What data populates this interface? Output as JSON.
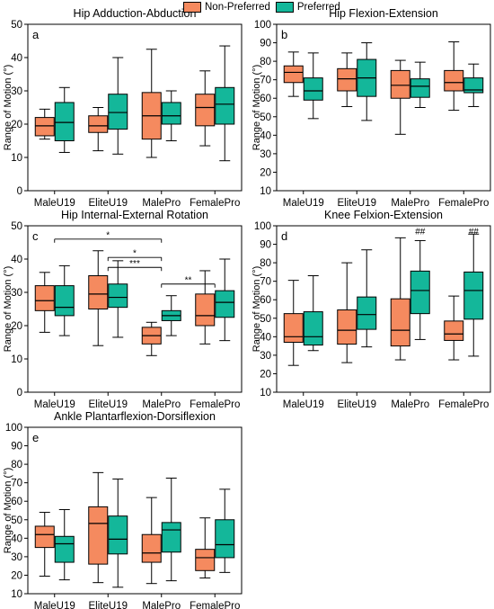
{
  "colors": {
    "non_preferred": "#f58a5f",
    "preferred": "#14b79a"
  },
  "legend": {
    "non_preferred": "Non-Preferred",
    "preferred": "Preferred"
  },
  "chart_data": [
    {
      "type": "box",
      "panel_label": "a",
      "title": "Hip Adduction-Abduction",
      "ylabel": "Range of Motion (°)",
      "ylim": [
        0,
        50
      ],
      "yticks": [
        0,
        10,
        20,
        30,
        40,
        50
      ],
      "categories": [
        "MaleU19",
        "EliteU19",
        "MalePro",
        "FemalePro"
      ],
      "series": [
        {
          "name": "Non-Preferred",
          "boxes": [
            {
              "min": 15.5,
              "q1": 16.5,
              "median": 19.5,
              "q3": 22.0,
              "max": 24.5
            },
            {
              "min": 12.0,
              "q1": 17.5,
              "median": 19.5,
              "q3": 22.5,
              "max": 25.0
            },
            {
              "min": 10.0,
              "q1": 15.5,
              "median": 22.5,
              "q3": 29.5,
              "max": 42.5
            },
            {
              "min": 13.5,
              "q1": 19.5,
              "median": 25.0,
              "q3": 29.0,
              "max": 36.0
            }
          ]
        },
        {
          "name": "Preferred",
          "boxes": [
            {
              "min": 11.5,
              "q1": 15.0,
              "median": 20.5,
              "q3": 26.5,
              "max": 31.0
            },
            {
              "min": 11.0,
              "q1": 18.5,
              "median": 23.5,
              "q3": 29.0,
              "max": 40.0
            },
            {
              "min": 15.0,
              "q1": 20.0,
              "median": 22.5,
              "q3": 26.5,
              "max": 30.0
            },
            {
              "min": 9.0,
              "q1": 20.0,
              "median": 26.0,
              "q3": 31.0,
              "max": 43.5
            }
          ]
        }
      ],
      "annotations": []
    },
    {
      "type": "box",
      "panel_label": "b",
      "title": "Hip Flexion-Extension",
      "ylabel": "Range of Motion (°)",
      "ylim": [
        10,
        100
      ],
      "yticks": [
        10,
        20,
        30,
        40,
        50,
        60,
        70,
        80,
        90,
        100
      ],
      "categories": [
        "MaleU19",
        "EliteU19",
        "MalePro",
        "FemalePro"
      ],
      "series": [
        {
          "name": "Non-Preferred",
          "boxes": [
            {
              "min": 61.0,
              "q1": 68.5,
              "median": 74.0,
              "q3": 77.5,
              "max": 85.0
            },
            {
              "min": 55.5,
              "q1": 64.0,
              "median": 70.5,
              "q3": 76.0,
              "max": 84.5
            },
            {
              "min": 40.5,
              "q1": 60.0,
              "median": 67.0,
              "q3": 75.0,
              "max": 80.5
            },
            {
              "min": 53.5,
              "q1": 64.0,
              "median": 68.5,
              "q3": 75.0,
              "max": 90.5
            }
          ]
        },
        {
          "name": "Preferred",
          "boxes": [
            {
              "min": 49.0,
              "q1": 59.0,
              "median": 64.0,
              "q3": 71.0,
              "max": 84.5
            },
            {
              "min": 48.0,
              "q1": 61.0,
              "median": 71.0,
              "q3": 81.0,
              "max": 90.0
            },
            {
              "min": 55.0,
              "q1": 60.5,
              "median": 66.5,
              "q3": 70.5,
              "max": 79.5
            },
            {
              "min": 55.5,
              "q1": 63.0,
              "median": 64.5,
              "q3": 71.0,
              "max": 78.5
            }
          ]
        }
      ],
      "annotations": []
    },
    {
      "type": "box",
      "panel_label": "c",
      "title": "Hip Internal-External Rotation",
      "ylabel": "Range of Motion (°)",
      "ylim": [
        0,
        50
      ],
      "yticks": [
        0,
        10,
        20,
        30,
        40,
        50
      ],
      "categories": [
        "MaleU19",
        "EliteU19",
        "MalePro",
        "FemalePro"
      ],
      "series": [
        {
          "name": "Non-Preferred",
          "boxes": [
            {
              "min": 18.0,
              "q1": 24.5,
              "median": 27.5,
              "q3": 32.0,
              "max": 36.0
            },
            {
              "min": 14.0,
              "q1": 25.0,
              "median": 29.5,
              "q3": 35.0,
              "max": 42.5
            },
            {
              "min": 11.0,
              "q1": 14.5,
              "median": 17.0,
              "q3": 19.5,
              "max": 21.0
            },
            {
              "min": 14.5,
              "q1": 20.0,
              "median": 23.0,
              "q3": 29.5,
              "max": 36.5
            }
          ]
        },
        {
          "name": "Preferred",
          "boxes": [
            {
              "min": 17.0,
              "q1": 23.0,
              "median": 25.5,
              "q3": 32.0,
              "max": 38.0
            },
            {
              "min": 16.5,
              "q1": 25.5,
              "median": 28.5,
              "q3": 32.5,
              "max": 39.5
            },
            {
              "min": 17.0,
              "q1": 21.5,
              "median": 23.0,
              "q3": 24.5,
              "max": 29.0
            },
            {
              "min": 15.5,
              "q1": 22.5,
              "median": 27.0,
              "q3": 30.5,
              "max": 40.0
            }
          ]
        }
      ],
      "annotations": [
        {
          "from": "MaleU19",
          "to": "MalePro",
          "y": 46.0,
          "text": "*"
        },
        {
          "from": "EliteU19",
          "to": "MalePro",
          "y": 40.5,
          "text": "*"
        },
        {
          "from": "EliteU19",
          "to": "MalePro",
          "y": 37.5,
          "text": "***"
        },
        {
          "from": "MalePro",
          "to": "FemalePro",
          "y": 32.5,
          "text": "**"
        }
      ]
    },
    {
      "type": "box",
      "panel_label": "d",
      "title": "Knee Felxion-Extension",
      "ylabel": "Range of Motion (°)",
      "ylim": [
        10,
        100
      ],
      "yticks": [
        10,
        20,
        30,
        40,
        50,
        60,
        70,
        80,
        90,
        100
      ],
      "categories": [
        "MaleU19",
        "EliteU19",
        "MalePro",
        "FemalePro"
      ],
      "series": [
        {
          "name": "Non-Preferred",
          "boxes": [
            {
              "min": 24.5,
              "q1": 37.0,
              "median": 40.0,
              "q3": 52.5,
              "max": 70.5
            },
            {
              "min": 26.0,
              "q1": 36.0,
              "median": 43.5,
              "q3": 54.5,
              "max": 80.0
            },
            {
              "min": 27.5,
              "q1": 35.0,
              "median": 43.5,
              "q3": 60.5,
              "max": 93.5
            },
            {
              "min": 27.5,
              "q1": 38.0,
              "median": 41.5,
              "q3": 48.5,
              "max": 62.0
            }
          ]
        },
        {
          "name": "Preferred",
          "boxes": [
            {
              "min": 32.5,
              "q1": 35.5,
              "median": 40.0,
              "q3": 53.5,
              "max": 73.0
            },
            {
              "min": 34.5,
              "q1": 44.0,
              "median": 52.0,
              "q3": 61.5,
              "max": 87.0
            },
            {
              "min": 38.5,
              "q1": 52.5,
              "median": 65.0,
              "q3": 75.5,
              "max": 92.0
            },
            {
              "min": 29.5,
              "q1": 49.5,
              "median": 65.0,
              "q3": 75.0,
              "max": 95.5
            }
          ]
        }
      ],
      "annotations": [
        {
          "category": "MalePro",
          "series": "Preferred",
          "y": 95.5,
          "text": "##"
        },
        {
          "category": "FemalePro",
          "series": "Preferred",
          "y": 95.5,
          "text": "##"
        }
      ]
    },
    {
      "type": "box",
      "panel_label": "e",
      "title": "Ankle Plantarflexion-Dorsiflexion",
      "ylabel": "Range of Motion (°)",
      "ylim": [
        10,
        100
      ],
      "yticks": [
        10,
        20,
        30,
        40,
        50,
        60,
        70,
        80,
        90,
        100
      ],
      "categories": [
        "MaleU19",
        "EliteU19",
        "MalePro",
        "FemalePro"
      ],
      "series": [
        {
          "name": "Non-Preferred",
          "boxes": [
            {
              "min": 19.5,
              "q1": 35.0,
              "median": 42.0,
              "q3": 46.5,
              "max": 54.0
            },
            {
              "min": 16.0,
              "q1": 26.0,
              "median": 48.0,
              "q3": 57.0,
              "max": 75.5
            },
            {
              "min": 15.5,
              "q1": 27.0,
              "median": 32.0,
              "q3": 42.0,
              "max": 62.0
            },
            {
              "min": 18.5,
              "q1": 22.5,
              "median": 29.5,
              "q3": 34.0,
              "max": 51.0
            }
          ]
        },
        {
          "name": "Preferred",
          "boxes": [
            {
              "min": 17.5,
              "q1": 27.0,
              "median": 37.0,
              "q3": 41.0,
              "max": 55.5
            },
            {
              "min": 13.5,
              "q1": 31.5,
              "median": 39.5,
              "q3": 52.0,
              "max": 72.0
            },
            {
              "min": 17.0,
              "q1": 32.5,
              "median": 44.5,
              "q3": 48.5,
              "max": 72.5
            },
            {
              "min": 21.5,
              "q1": 29.5,
              "median": 36.5,
              "q3": 50.0,
              "max": 66.5
            }
          ]
        }
      ],
      "annotations": []
    }
  ]
}
